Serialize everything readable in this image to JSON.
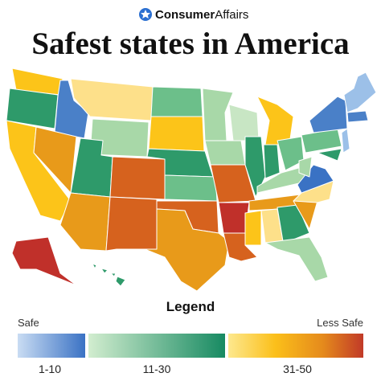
{
  "logo": {
    "brand_bold": "Consumer",
    "brand_light": "Affairs"
  },
  "title": "Safest states in America",
  "legend": {
    "title": "Legend",
    "left_label": "Safe",
    "right_label": "Less Safe",
    "ranges": [
      "1-10",
      "11-30",
      "31-50"
    ]
  }
}
